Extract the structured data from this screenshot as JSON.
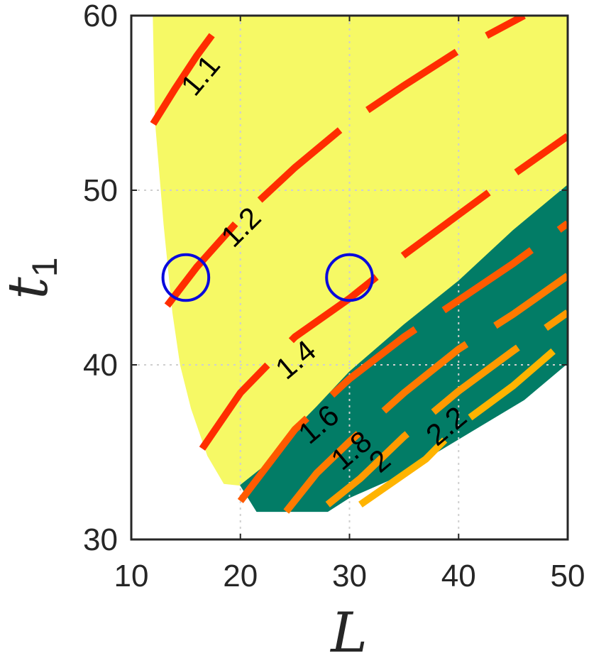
{
  "chart_data": {
    "type": "contour",
    "xlabel": "L",
    "ylabel_base": "t",
    "ylabel_sub": "1",
    "xlim": [
      10,
      50
    ],
    "ylim": [
      30,
      60
    ],
    "xticks": [
      10,
      20,
      30,
      40,
      50
    ],
    "yticks": [
      30,
      40,
      50,
      60
    ],
    "xtick_labels": [
      "10",
      "20",
      "30",
      "40",
      "50"
    ],
    "ytick_labels": [
      "30",
      "40",
      "50",
      "60"
    ],
    "grid": true,
    "regions": [
      {
        "name": "yellow-region",
        "color": "#f6f965",
        "boundary": [
          [
            12,
            60
          ],
          [
            50,
            60
          ],
          [
            50,
            50.3
          ],
          [
            45,
            47.7
          ],
          [
            40,
            44.8
          ],
          [
            35,
            42.3
          ],
          [
            30,
            39.6
          ],
          [
            27,
            37.6
          ],
          [
            24,
            35.7
          ],
          [
            22,
            34.1
          ],
          [
            20,
            33.1
          ],
          [
            18.5,
            33.2
          ],
          [
            17,
            34.8
          ],
          [
            15.5,
            37.5
          ],
          [
            14.5,
            40
          ],
          [
            13.8,
            43
          ],
          [
            13,
            48
          ],
          [
            12.2,
            54
          ],
          [
            12,
            60
          ]
        ]
      },
      {
        "name": "green-region",
        "color": "#027c66",
        "boundary": [
          [
            20,
            33.1
          ],
          [
            22,
            34.1
          ],
          [
            24,
            35.7
          ],
          [
            27,
            37.6
          ],
          [
            30,
            39.6
          ],
          [
            35,
            42.3
          ],
          [
            40,
            44.8
          ],
          [
            45,
            47.7
          ],
          [
            50,
            50.3
          ],
          [
            50,
            40.1
          ],
          [
            46,
            38
          ],
          [
            42,
            36.5
          ],
          [
            38,
            35
          ],
          [
            34,
            33.5
          ],
          [
            30,
            32.4
          ],
          [
            28,
            31.6
          ],
          [
            21.5,
            31.6
          ],
          [
            20,
            33.1
          ]
        ]
      }
    ],
    "contours": [
      {
        "level": "1.1",
        "label": "1.1",
        "color": "#ff2d00",
        "points": [
          [
            12,
            53.8
          ],
          [
            14,
            55.8
          ],
          [
            16,
            57.7
          ],
          [
            18,
            59.4
          ],
          [
            19,
            60
          ]
        ],
        "label_at": [
          16.5,
          56.5
        ],
        "label_angle": -50
      },
      {
        "level": "1.2",
        "label": "1.2",
        "color": "#ff2d00",
        "points": [
          [
            13.3,
            43.4
          ],
          [
            16,
            45.6
          ],
          [
            20,
            48.4
          ],
          [
            25,
            51.3
          ],
          [
            30,
            53.9
          ],
          [
            35,
            56
          ],
          [
            40,
            58
          ],
          [
            46,
            60
          ]
        ],
        "label_at": [
          20.2,
          47.8
        ],
        "label_angle": -45
      },
      {
        "level": "1.4",
        "label": "1.4",
        "color": "#ff2d00",
        "points": [
          [
            16.5,
            35.2
          ],
          [
            20,
            38.4
          ],
          [
            25,
            41.6
          ],
          [
            30,
            43.8
          ],
          [
            35,
            46.3
          ],
          [
            40,
            48.6
          ],
          [
            45,
            50.9
          ],
          [
            50,
            53.1
          ]
        ],
        "label_at": [
          25.2,
          40.2
        ],
        "label_angle": -40
      },
      {
        "level": "1.6",
        "label": "1.6",
        "color": "#ff5a00",
        "points": [
          [
            20,
            32.2
          ],
          [
            25,
            36.3
          ],
          [
            30,
            39.2
          ],
          [
            35,
            41.6
          ],
          [
            40,
            43.7
          ],
          [
            45,
            45.8
          ],
          [
            50,
            48.1
          ]
        ],
        "label_at": [
          27.3,
          36.5
        ],
        "label_angle": -40
      },
      {
        "level": "1.8",
        "label": "1.8",
        "color": "#ff7a00",
        "points": [
          [
            24.2,
            31.6
          ],
          [
            27,
            33.8
          ],
          [
            30,
            35.6
          ],
          [
            35,
            38.4
          ],
          [
            40,
            40.9
          ],
          [
            45,
            42.9
          ],
          [
            50,
            45.1
          ]
        ],
        "label_at": [
          30.3,
          35
        ],
        "label_angle": -40
      },
      {
        "level": "2",
        "label": "2",
        "color": "#ff9a00",
        "points": [
          [
            28,
            32
          ],
          [
            31,
            33.5
          ],
          [
            35,
            35.9
          ],
          [
            40,
            38.5
          ],
          [
            45,
            40.8
          ],
          [
            50,
            43
          ]
        ],
        "label_at": [
          32.9,
          34.4
        ],
        "label_angle": -40
      },
      {
        "level": "2.2",
        "label": "2.2",
        "color": "#ffb400",
        "points": [
          [
            31,
            32
          ],
          [
            34,
            33.3
          ],
          [
            37,
            34.6
          ],
          [
            40,
            36.5
          ],
          [
            45,
            38.8
          ],
          [
            50,
            41.5
          ]
        ],
        "label_at": [
          39,
          36.4
        ],
        "label_angle": -40
      }
    ],
    "markers": [
      {
        "name": "circle-marker-1",
        "x": 15,
        "y": 45,
        "radius_units": 2.1,
        "color": "#0a0adc"
      },
      {
        "name": "circle-marker-2",
        "x": 30,
        "y": 45,
        "radius_units": 2.1,
        "color": "#0a0adc"
      }
    ]
  }
}
